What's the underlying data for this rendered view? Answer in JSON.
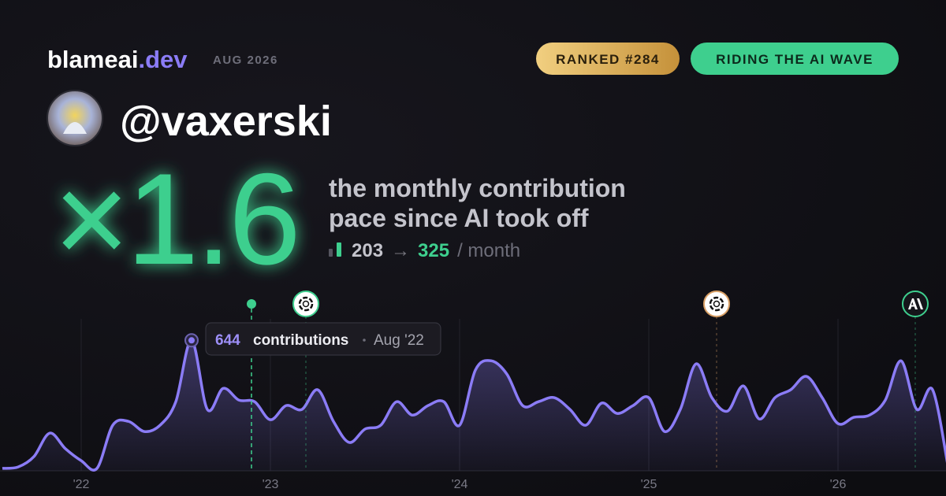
{
  "header": {
    "brand": "blameai",
    "brand_suffix": ".dev",
    "date": "AUG 2026",
    "badges": [
      "RANKED #284",
      "RIDING THE AI WAVE"
    ]
  },
  "profile": {
    "handle": "@vaxerski"
  },
  "hero": {
    "multiplier": "×1.6",
    "caption": [
      "the monthly contribution",
      "pace since AI took off"
    ],
    "before": 203,
    "arrow": "→",
    "after": 325,
    "unit": "/ month"
  },
  "chart_data": {
    "type": "line",
    "color": "#8b7cf6",
    "grid": true,
    "categories": [
      null,
      null,
      null,
      null,
      null,
      "'22",
      null,
      null,
      null,
      null,
      null,
      null,
      null,
      null,
      null,
      null,
      null,
      "'23",
      null,
      null,
      null,
      null,
      null,
      null,
      null,
      null,
      null,
      null,
      null,
      "'24",
      null,
      null,
      null,
      null,
      null,
      null,
      null,
      null,
      null,
      null,
      null,
      "'25",
      null,
      null,
      null,
      null,
      null,
      null,
      null,
      null,
      null,
      null,
      null,
      "'26",
      null,
      null,
      null,
      null,
      null,
      null,
      null
    ],
    "values": [
      12,
      19,
      70,
      186,
      109,
      50,
      12,
      225,
      244,
      194,
      225,
      341,
      644,
      303,
      407,
      349,
      341,
      252,
      322,
      303,
      400,
      244,
      140,
      206,
      225,
      341,
      275,
      322,
      341,
      225,
      497,
      543,
      477,
      322,
      341,
      361,
      303,
      225,
      334,
      283,
      322,
      361,
      194,
      303,
      528,
      361,
      295,
      419,
      256,
      361,
      400,
      466,
      361,
      233,
      264,
      275,
      349,
      543,
      303,
      400,
      12
    ],
    "ylim": [
      0,
      750
    ],
    "tooltip": {
      "value": 644,
      "label": "contributions",
      "date": "Aug '22"
    }
  }
}
